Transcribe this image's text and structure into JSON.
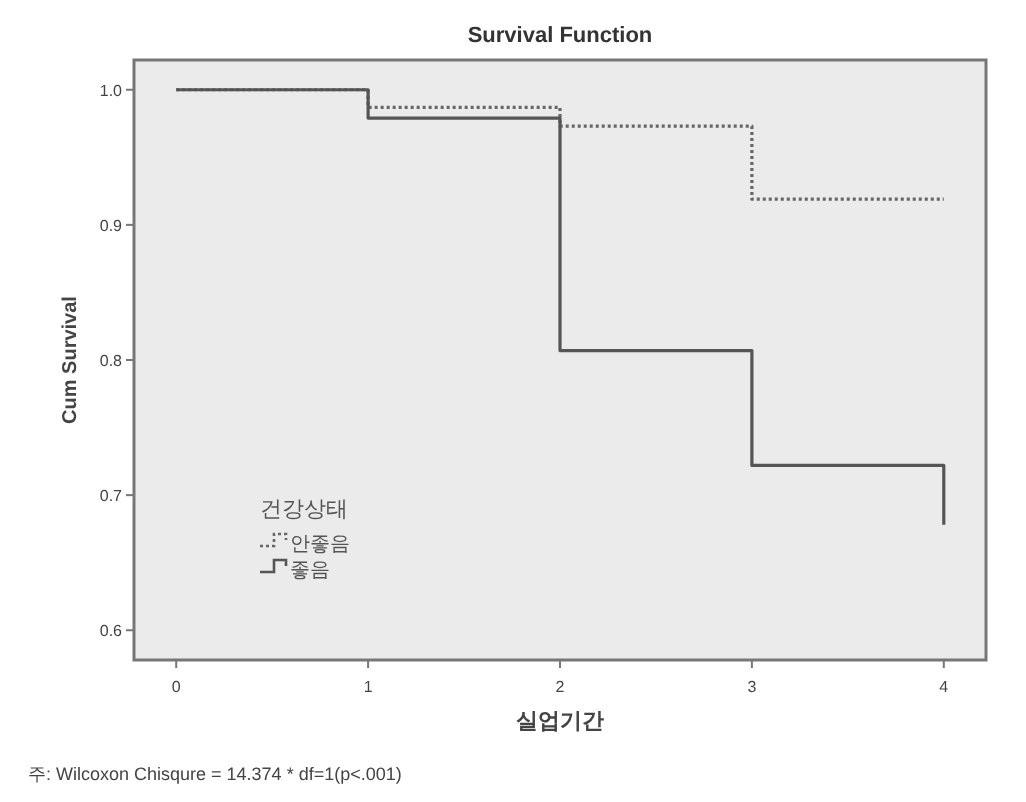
{
  "chart_data": {
    "type": "step",
    "title": "Survival Function",
    "xlabel": "실업기간",
    "ylabel": "Cum Survival",
    "legend_title": "건강상태",
    "xlim": [
      -0.22,
      4.22
    ],
    "xticks": [
      0,
      1,
      2,
      3,
      4
    ],
    "ylim": [
      0.578,
      1.022
    ],
    "yticks": [
      0.6,
      0.7,
      0.8,
      0.9,
      {
        "value": 1,
        "label": "1.0"
      }
    ],
    "grid": false,
    "legend": "bottom left",
    "series": [
      {
        "name": "안좋음",
        "color": "#666666",
        "line_style": "dotted",
        "x": [
          0,
          1,
          2,
          3,
          4
        ],
        "values": [
          1,
          0.987,
          0.973,
          0.919,
          0.919
        ]
      },
      {
        "name": "좋음",
        "color": "#555555",
        "line_style": "solid",
        "x": [
          0,
          1,
          2,
          3,
          4
        ],
        "values": [
          1,
          0.979,
          0.807,
          0.722,
          0.678
        ]
      }
    ],
    "annotations": [
      "주: Wilcoxon Chisqure = 14.374 * df=1(p<.001)"
    ]
  }
}
